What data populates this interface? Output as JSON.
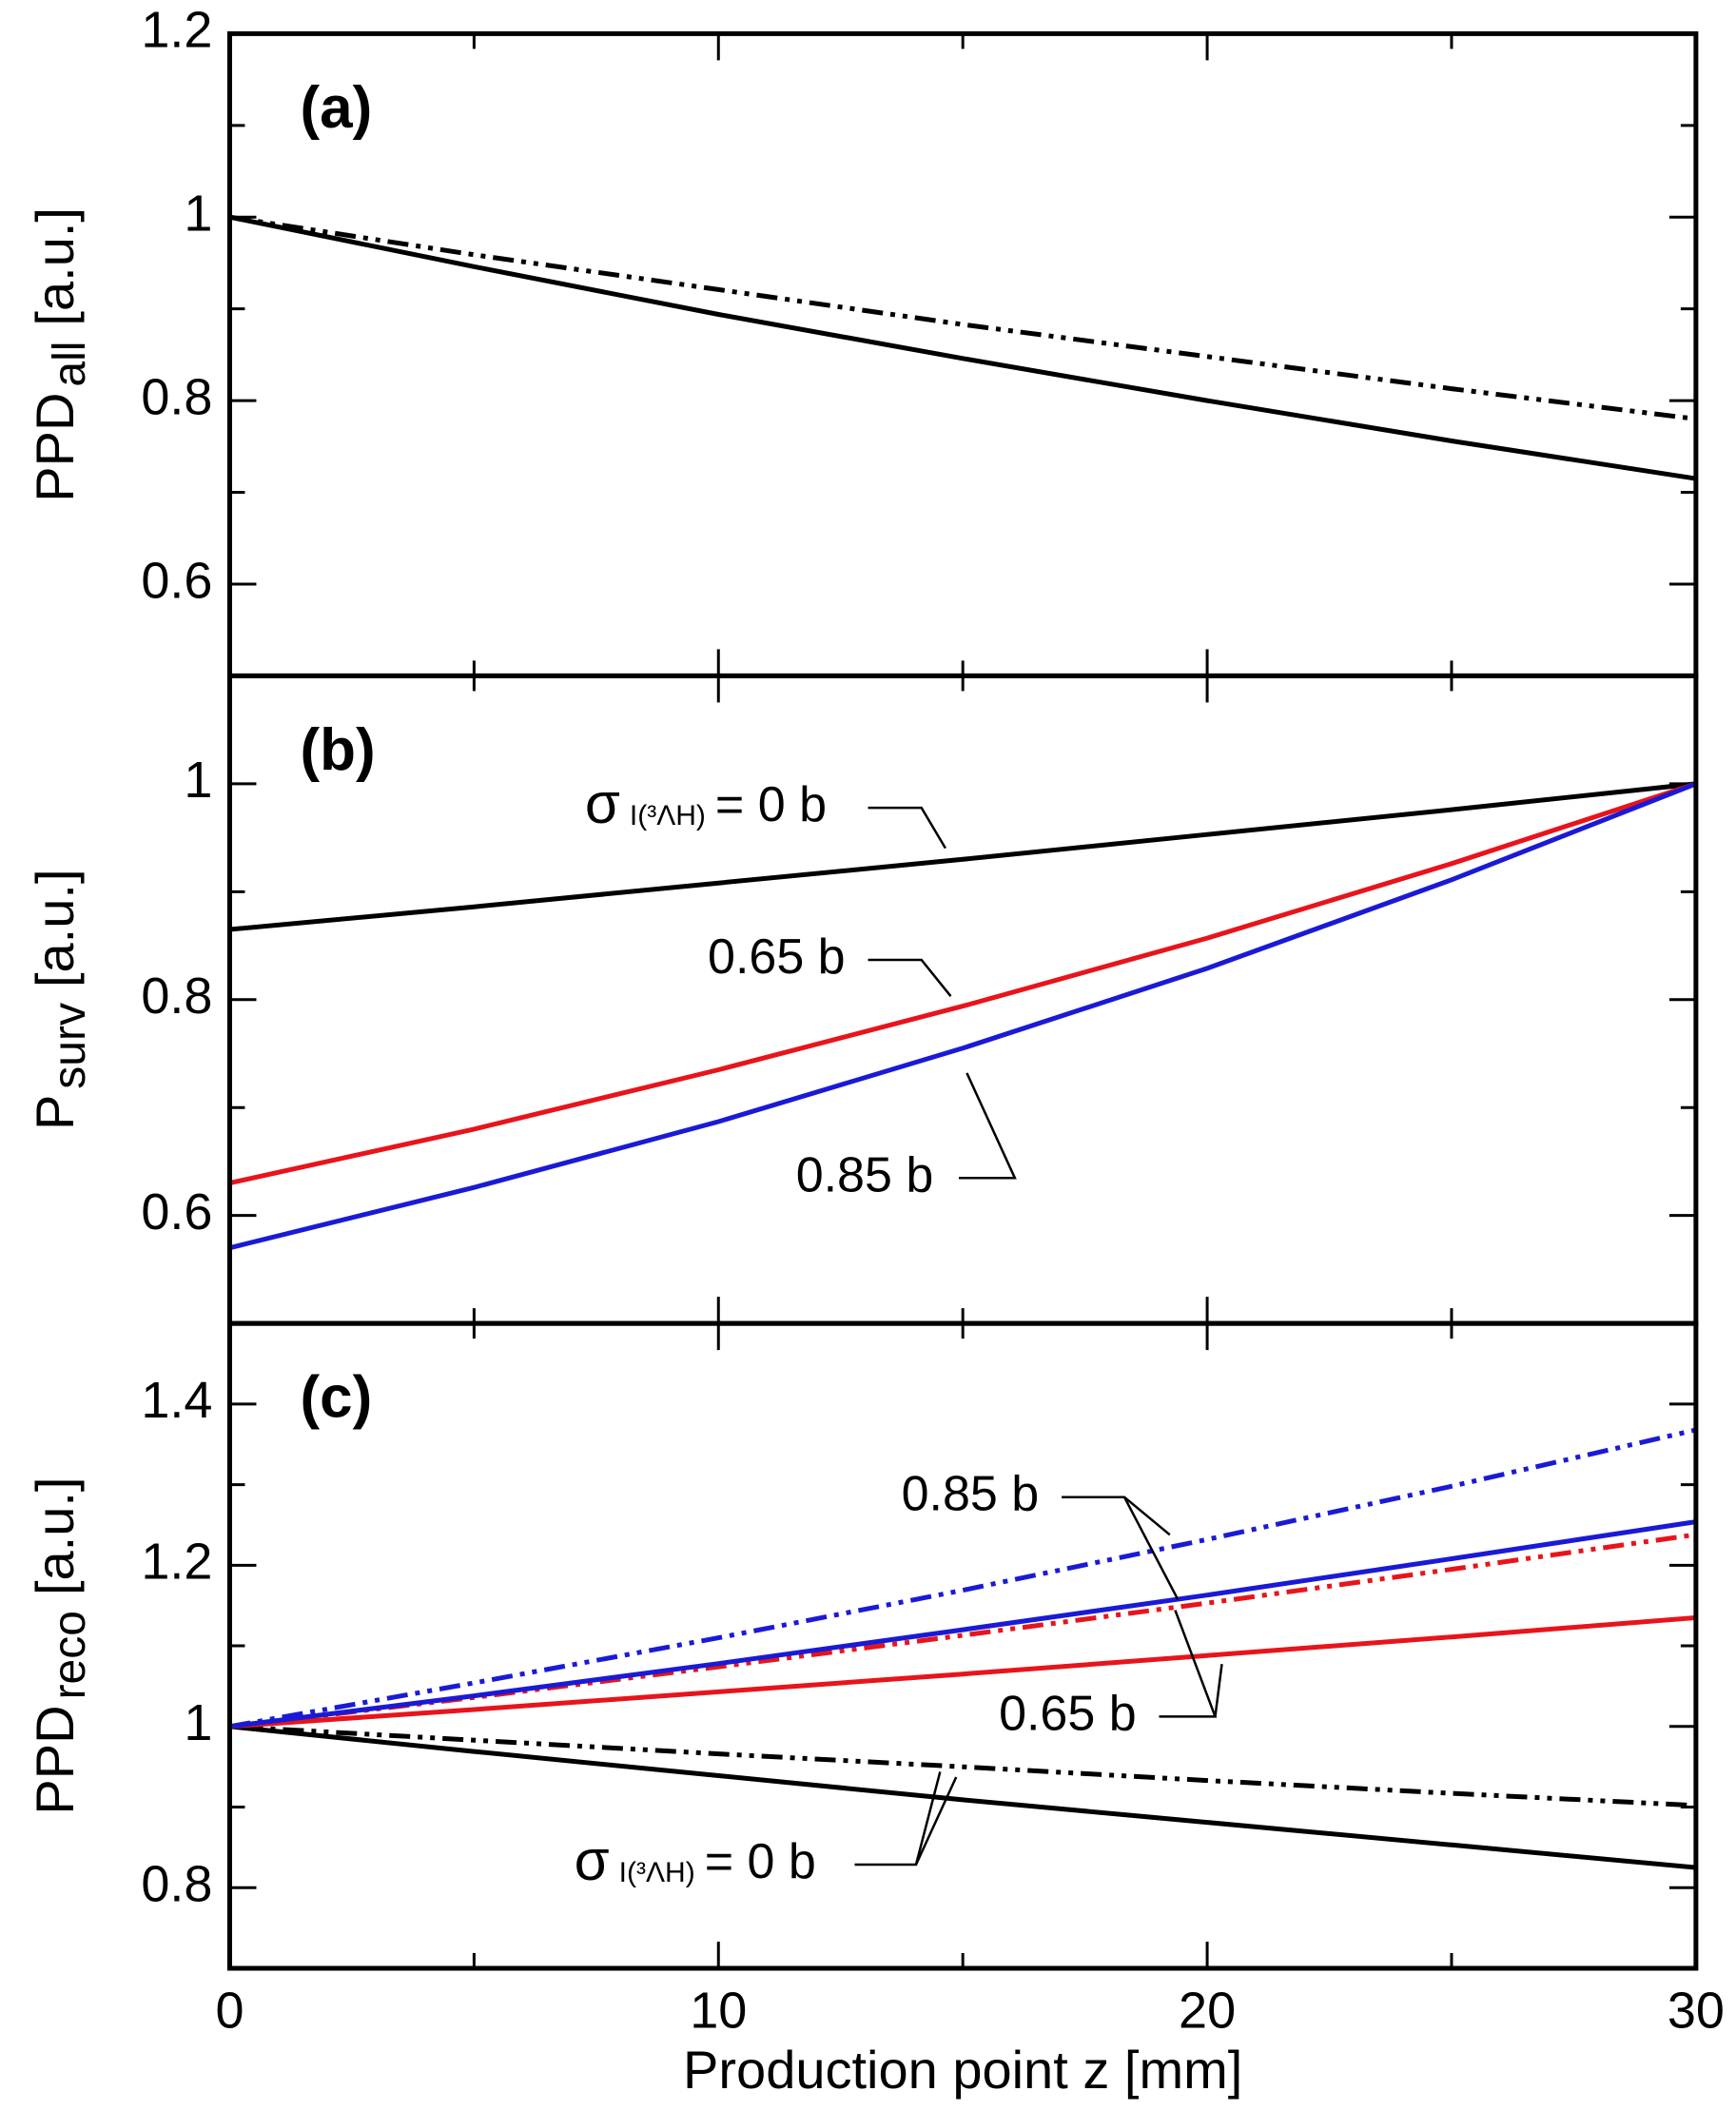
{
  "chart_data": [
    {
      "type": "line",
      "panel_label": "(a)",
      "ylabel": {
        "main": "PPD",
        "sub": "all",
        "unit": "[a.u.]"
      },
      "x": [
        0,
        5,
        10,
        15,
        20,
        25,
        30
      ],
      "xlim": [
        0,
        30
      ],
      "xticks": [
        0,
        10,
        20,
        30
      ],
      "xminor": [
        5,
        15,
        25
      ],
      "ylim": [
        0.5,
        1.2
      ],
      "yticks": [
        0.6,
        0.8,
        1.0,
        1.2
      ],
      "yminor": [
        0.5,
        0.7,
        0.9,
        1.1
      ],
      "series": [
        {
          "color": "#000000",
          "style": "solid",
          "values": [
            1.0,
            0.946,
            0.894,
            0.846,
            0.8,
            0.756,
            0.715
          ]
        },
        {
          "color": "#000000",
          "style": "dashdot",
          "values": [
            1.0,
            0.959,
            0.921,
            0.883,
            0.848,
            0.813,
            0.78
          ]
        }
      ],
      "annotations": []
    },
    {
      "type": "line",
      "panel_label": "(b)",
      "ylabel": {
        "main": "P",
        "sub": "surv",
        "unit": "[a.u.]"
      },
      "x": [
        0,
        5,
        10,
        15,
        20,
        25,
        30
      ],
      "xlim": [
        0,
        30
      ],
      "xticks": [
        0,
        10,
        20,
        30
      ],
      "xminor": [
        5,
        15,
        25
      ],
      "ylim": [
        0.5,
        1.1
      ],
      "yticks": [
        0.6,
        0.8,
        1.0
      ],
      "yminor": [
        0.5,
        0.7,
        0.9,
        1.1
      ],
      "series": [
        {
          "color": "#000000",
          "style": "solid",
          "values": [
            0.865,
            0.886,
            0.908,
            0.93,
            0.953,
            0.976,
            1.0
          ]
        },
        {
          "color": "#e8141b",
          "style": "solid",
          "values": [
            0.63,
            0.68,
            0.735,
            0.794,
            0.857,
            0.926,
            1.0
          ]
        },
        {
          "color": "#1a1ad6",
          "style": "solid",
          "values": [
            0.57,
            0.626,
            0.687,
            0.755,
            0.829,
            0.911,
            1.0
          ]
        }
      ],
      "annotations": [
        {
          "sigma": "σ",
          "sub": "I(³ΛH)",
          "text": "= 0 b"
        },
        {
          "text": "0.65 b"
        },
        {
          "text": "0.85 b"
        }
      ]
    },
    {
      "type": "line",
      "panel_label": "(c)",
      "ylabel": {
        "main": "PPD",
        "sub": "reco",
        "unit": "[a.u.]"
      },
      "xlabel": "Production point z [mm]",
      "x": [
        0,
        5,
        10,
        15,
        20,
        25,
        30
      ],
      "xlim": [
        0,
        30
      ],
      "xticks": [
        0,
        10,
        20,
        30
      ],
      "xminor": [
        5,
        15,
        25
      ],
      "ylim": [
        0.7,
        1.5
      ],
      "yticks": [
        0.8,
        1.0,
        1.2,
        1.4
      ],
      "yminor": [
        0.9,
        1.1,
        1.3,
        1.5
      ],
      "series": [
        {
          "color": "#000000",
          "style": "solid",
          "values": [
            1.0,
            0.969,
            0.939,
            0.909,
            0.881,
            0.853,
            0.825
          ]
        },
        {
          "color": "#000000",
          "style": "dashdot",
          "values": [
            1.0,
            0.983,
            0.966,
            0.95,
            0.933,
            0.917,
            0.902
          ]
        },
        {
          "color": "#e8141b",
          "style": "solid",
          "values": [
            1.0,
            1.021,
            1.043,
            1.065,
            1.088,
            1.111,
            1.135
          ]
        },
        {
          "color": "#e8141b",
          "style": "dashdot",
          "values": [
            1.0,
            1.036,
            1.074,
            1.113,
            1.153,
            1.195,
            1.238
          ]
        },
        {
          "color": "#1a1ad6",
          "style": "solid",
          "values": [
            1.0,
            1.038,
            1.078,
            1.12,
            1.163,
            1.208,
            1.254
          ]
        },
        {
          "color": "#1a1ad6",
          "style": "dashdot",
          "values": [
            1.0,
            1.054,
            1.11,
            1.169,
            1.232,
            1.298,
            1.368
          ]
        }
      ],
      "annotations": [
        {
          "text": "0.85 b"
        },
        {
          "text": "0.65 b"
        },
        {
          "sigma": "σ",
          "sub": "I(³ΛH)",
          "text": "= 0 b"
        }
      ]
    }
  ]
}
